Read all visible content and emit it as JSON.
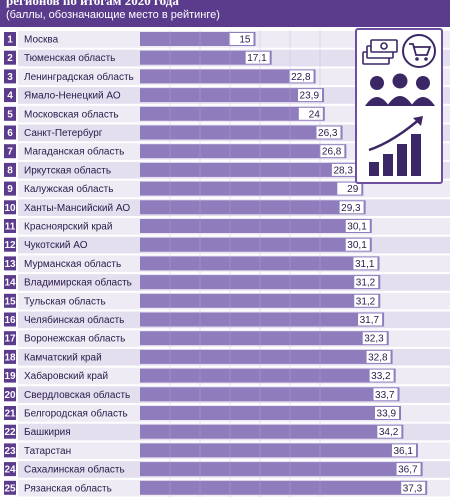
{
  "header": {
    "title": "регионов по итогам 2020 года",
    "subtitle": "(баллы, обозначающие место в рейтинге)"
  },
  "colors": {
    "header_bg": "#5a3b8c",
    "bar": "#8f7cbd",
    "bar_stripe": "#bfb2dc",
    "rank_box": "#5a3b8c",
    "row_light": "#eeebf4",
    "row_dark": "#e3dfee",
    "value_box": "#ffffff",
    "icon": "#3b2766"
  },
  "icons": [
    "money-stack-icon",
    "shopping-cart-icon",
    "people-group-icon",
    "growth-chart-icon"
  ],
  "chart_data": {
    "type": "bar",
    "orientation": "horizontal",
    "title": "регионов по итогам 2020 года",
    "subtitle": "(баллы, обозначающие место в рейтинге)",
    "xlim": [
      0,
      40
    ],
    "categories": [
      "Москва",
      "Тюменская область",
      "Ленинградская область",
      "Ямало-Ненецкий АО",
      "Московская область",
      "Санкт-Петербург",
      "Магаданская область",
      "Иркутская область",
      "Калужская область",
      "Ханты-Мансийский АО",
      "Красноярский край",
      "Чукотский АО",
      "Мурманская область",
      "Владимирская область",
      "Тульская область",
      "Челябинская область",
      "Воронежская область",
      "Камчатский край",
      "Хабаровский край",
      "Свердловская область",
      "Белгородская область",
      "Башкирия",
      "Татарстан",
      "Сахалинская область",
      "Рязанская область"
    ],
    "ranks": [
      "1",
      "2",
      "3",
      "4",
      "5",
      "6",
      "7",
      "8",
      "9",
      "10",
      "11",
      "12",
      "13",
      "14",
      "15",
      "16",
      "17",
      "18",
      "19",
      "20",
      "21",
      "22",
      "23",
      "24",
      "25"
    ],
    "values": [
      15,
      17.1,
      22.8,
      23.9,
      24,
      26.3,
      26.8,
      28.3,
      29,
      29.3,
      30.1,
      30.1,
      31.1,
      31.2,
      31.2,
      31.7,
      32.3,
      32.8,
      33.2,
      33.7,
      33.9,
      34.2,
      36.1,
      36.7,
      37.3
    ],
    "value_labels": [
      "15",
      "17,1",
      "22,8",
      "23,9",
      "24",
      "26,3",
      "26,8",
      "28,3",
      "29",
      "29,3",
      "30,1",
      "30,1",
      "31,1",
      "31,2",
      "31,2",
      "31,7",
      "32,3",
      "32,8",
      "33,2",
      "33,7",
      "33,9",
      "34,2",
      "36,1",
      "36,7",
      "37,3"
    ]
  }
}
